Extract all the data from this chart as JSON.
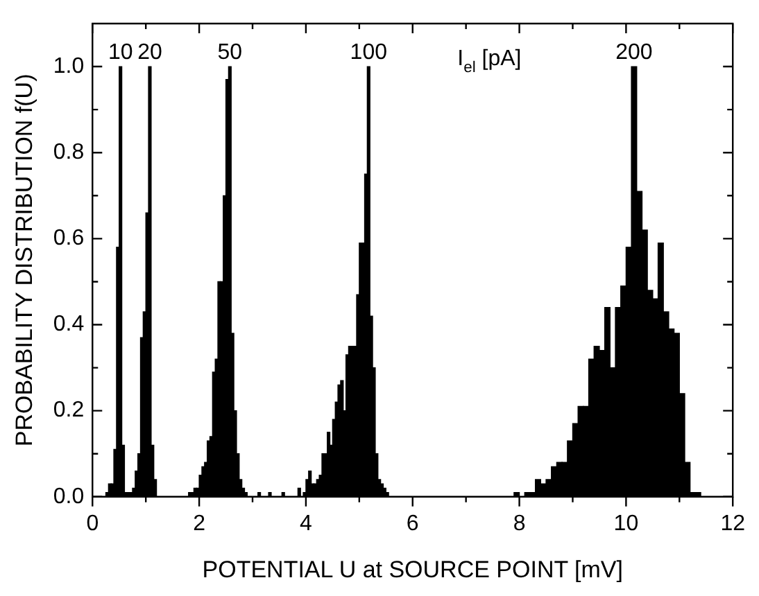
{
  "chart_data": {
    "type": "histogram",
    "xlabel": "POTENTIAL U at SOURCE POINT [mV]",
    "ylabel": "PROBABILITY DISTRIBUTION f(U)",
    "bins": [
      0.25,
      0.3,
      0.35,
      0.4,
      0.45,
      0.5,
      0.55,
      0.6,
      0.65,
      0.7,
      0.75,
      0.8,
      0.85,
      0.9,
      0.95,
      1.0,
      1.05,
      1.1,
      1.15,
      1.2,
      1.8,
      1.85,
      1.9,
      1.95,
      2.0,
      2.05,
      2.1,
      2.15,
      2.2,
      2.25,
      2.3,
      2.35,
      2.4,
      2.45,
      2.5,
      2.55,
      2.6,
      2.65,
      2.7,
      2.75,
      2.8,
      2.85,
      2.9,
      3.0,
      3.05,
      3.1,
      3.15,
      3.2,
      3.25,
      3.3,
      3.35,
      3.4,
      3.45,
      3.5,
      3.55,
      3.6,
      3.65,
      3.7,
      3.75,
      3.8,
      3.85,
      3.9,
      3.95,
      4.0,
      4.05,
      4.1,
      4.15,
      4.2,
      4.25,
      4.3,
      4.35,
      4.4,
      4.45,
      4.5,
      4.55,
      4.6,
      4.65,
      4.7,
      4.75,
      4.8,
      4.85,
      4.9,
      4.95,
      5.0,
      5.05,
      5.1,
      5.15,
      5.2,
      5.25,
      5.3,
      5.35,
      5.4,
      5.45,
      5.5,
      5.55,
      5.6,
      7.9,
      8.0,
      8.1,
      8.2,
      8.3,
      8.4,
      8.5,
      8.6,
      8.7,
      8.8,
      8.9,
      9.0,
      9.1,
      9.2,
      9.3,
      9.4,
      9.5,
      9.6,
      9.7,
      9.8,
      9.9,
      10.0,
      10.1,
      10.2,
      10.3,
      10.4,
      10.5,
      10.6,
      10.7,
      10.8,
      10.9,
      11.0,
      11.1,
      11.2,
      11.3,
      11.4
    ],
    "values": [
      0.01,
      0.03,
      0.03,
      0.11,
      0.58,
      1.0,
      0.12,
      0.01,
      0.01,
      0.01,
      0.02,
      0.06,
      0.1,
      0.37,
      0.43,
      0.66,
      1.0,
      0.12,
      0.04,
      0,
      0.01,
      0.01,
      0.02,
      0.02,
      0.05,
      0.07,
      0.08,
      0.13,
      0.14,
      0.29,
      0.32,
      0.5,
      0.5,
      0.7,
      0.97,
      1.0,
      0.38,
      0.2,
      0.1,
      0.04,
      0.02,
      0.01,
      0,
      0,
      0,
      0.01,
      0,
      0,
      0,
      0.01,
      0,
      0,
      0,
      0,
      0.01,
      0,
      0,
      0,
      0,
      0,
      0.02,
      0,
      0.01,
      0.04,
      0.06,
      0.03,
      0.03,
      0.04,
      0.05,
      0.1,
      0.1,
      0.15,
      0.12,
      0.18,
      0.22,
      0.26,
      0.27,
      0.2,
      0.33,
      0.35,
      0.35,
      0.35,
      0.47,
      0.59,
      0.59,
      0.75,
      1.0,
      0.42,
      0.3,
      0.1,
      0.04,
      0.03,
      0.02,
      0.01,
      0,
      0,
      0.01,
      0,
      0.01,
      0.01,
      0.04,
      0.03,
      0.04,
      0.07,
      0.08,
      0.08,
      0.13,
      0.17,
      0.21,
      0.21,
      0.32,
      0.35,
      0.34,
      0.44,
      0.3,
      0.44,
      0.49,
      0.58,
      1.0,
      0.71,
      0.62,
      0.48,
      0.46,
      0.59,
      0.43,
      0.39,
      0.38,
      0.24,
      0.08,
      0.01,
      0.01
    ],
    "color": "#000000",
    "xlim": [
      0,
      12
    ],
    "xticks": [
      0,
      {
        "value": 1,
        "label": null
      },
      2,
      {
        "value": 3,
        "label": null
      },
      4,
      {
        "value": 5,
        "label": null
      },
      6,
      {
        "value": 7,
        "label": null
      },
      8,
      {
        "value": 9,
        "label": null
      },
      10,
      {
        "value": 11,
        "label": null
      },
      12
    ],
    "ylim": [
      0,
      1.1
    ],
    "yticks": [
      {
        "value": 0,
        "label": "0.0"
      },
      {
        "value": 0.1,
        "label": null
      },
      {
        "value": 0.2,
        "label": "0.2"
      },
      {
        "value": 0.3,
        "label": null
      },
      {
        "value": 0.4,
        "label": "0.4"
      },
      {
        "value": 0.5,
        "label": null
      },
      {
        "value": 0.6,
        "label": "0.6"
      },
      {
        "value": 0.7,
        "label": null
      },
      {
        "value": 0.8,
        "label": "0.8"
      },
      {
        "value": 0.9,
        "label": null
      },
      {
        "value": 1.0,
        "label": "1.0"
      }
    ],
    "annotations": [
      {
        "text": "10",
        "x": 0.525,
        "y": 1.0
      },
      {
        "text": "20",
        "x": 1.075,
        "y": 1.0
      },
      {
        "text": "50",
        "x": 2.575,
        "y": 1.0
      },
      {
        "text": "100",
        "x": 5.175,
        "y": 1.0
      },
      {
        "text": "200",
        "x": 10.15,
        "y": 1.0
      },
      "I$_{el}$ [pA]"
    ],
    "grid": false,
    "legend": false
  }
}
